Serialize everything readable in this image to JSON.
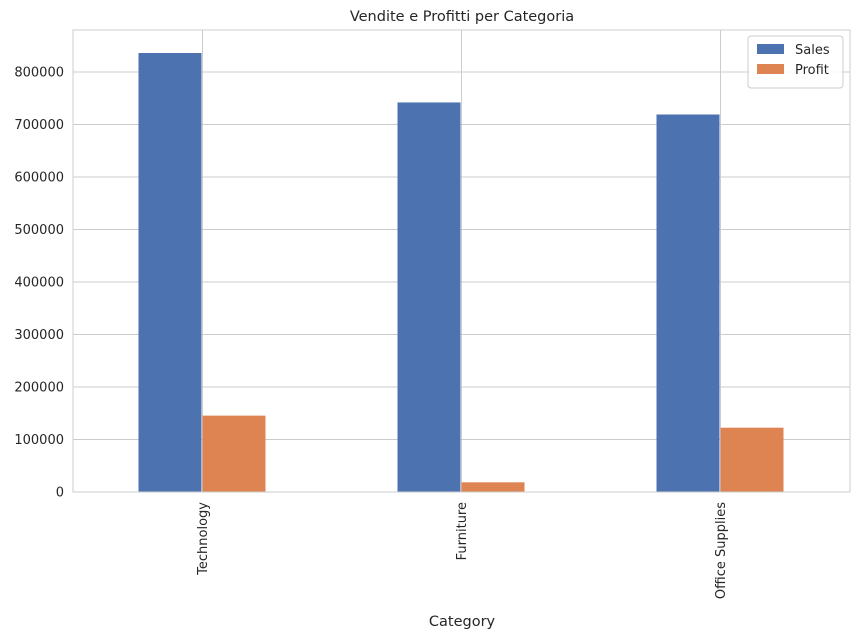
{
  "chart_data": {
    "type": "bar",
    "title": "Vendite e Profitti per Categoria",
    "xlabel": "Category",
    "ylabel": "",
    "categories": [
      "Technology",
      "Furniture",
      "Office Supplies"
    ],
    "series": [
      {
        "name": "Sales",
        "color": "#4c72b0",
        "values": [
          836154,
          741999,
          719047
        ]
      },
      {
        "name": "Profit",
        "color": "#dd8452",
        "values": [
          145455,
          18451,
          122491
        ]
      }
    ],
    "ylim": [
      0,
      880000
    ],
    "yticks": [
      0,
      100000,
      200000,
      300000,
      400000,
      500000,
      600000,
      700000,
      800000
    ],
    "ytick_labels": [
      "0",
      "100000",
      "200000",
      "300000",
      "400000",
      "500000",
      "600000",
      "700000",
      "800000"
    ],
    "grid": true,
    "legend_position": "top-right",
    "x_tick_rotation": 90
  }
}
